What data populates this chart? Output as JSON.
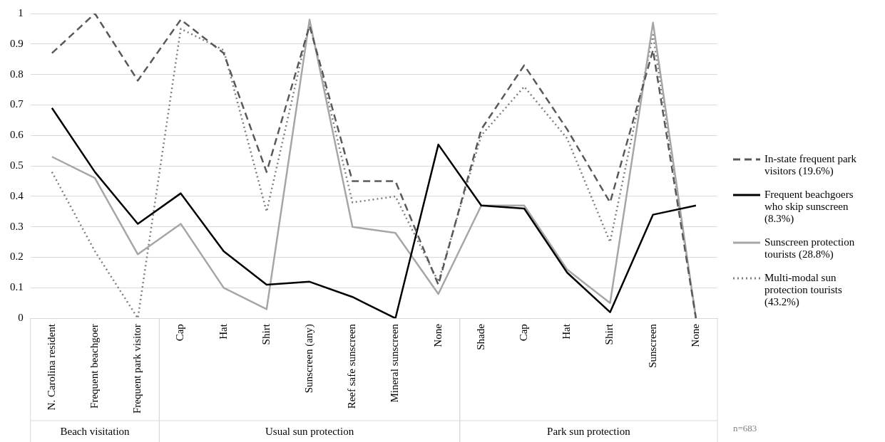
{
  "chart_data": {
    "type": "line",
    "categories": [
      "N. Carolina resident",
      "Frequent beachgoer",
      "Frequent park visitor",
      "Cap",
      "Hat",
      "Shirt",
      "Sunscreen (any)",
      "Reef safe sunscreen",
      "Mineral sunscreen",
      "None",
      "Shade",
      "Cap",
      "Hat",
      "Shirt",
      "Sunscreen",
      "None"
    ],
    "series": [
      {
        "name": "In-state frequent park visitors (19.6%)",
        "color": "#595959",
        "line_style": "dashed",
        "values": [
          0.87,
          1.0,
          0.78,
          0.98,
          0.87,
          0.48,
          0.96,
          0.45,
          0.45,
          0.11,
          0.62,
          0.83,
          0.62,
          0.38,
          0.88,
          0
        ]
      },
      {
        "name": "Frequent beachgoers who skip sunscreen (8.3%)",
        "color": "#000000",
        "line_style": "solid",
        "values": [
          0.69,
          0.48,
          0.31,
          0.41,
          0.22,
          0.11,
          0.12,
          0.07,
          0,
          0.57,
          0.37,
          0.36,
          0.15,
          0.02,
          0.34,
          0.37
        ]
      },
      {
        "name": "Sunscreen protection tourists (28.8%)",
        "color": "#a6a6a6",
        "line_style": "solid",
        "values": [
          0.53,
          0.46,
          0.21,
          0.31,
          0.1,
          0.03,
          0.98,
          0.3,
          0.28,
          0.08,
          0.37,
          0.37,
          0.16,
          0.05,
          0.97,
          0
        ]
      },
      {
        "name": "Multi-modal sun protection tourists (43.2%)",
        "color": "#7f7f7f",
        "line_style": "dotted",
        "values": [
          0.48,
          0.22,
          0,
          0.95,
          0.88,
          0.35,
          0.97,
          0.38,
          0.4,
          0.12,
          0.6,
          0.76,
          0.59,
          0.25,
          0.93,
          0
        ]
      }
    ],
    "ylim": [
      0,
      1
    ],
    "yticks": [
      0,
      0.1,
      0.2,
      0.3,
      0.4,
      0.5,
      0.6,
      0.7,
      0.8,
      0.9,
      1
    ],
    "grid": "y",
    "legend": "right",
    "marker": "none",
    "annotations": [
      "Beach visitation",
      "Usual sun protection",
      "Park sun protection",
      "n=683"
    ]
  }
}
